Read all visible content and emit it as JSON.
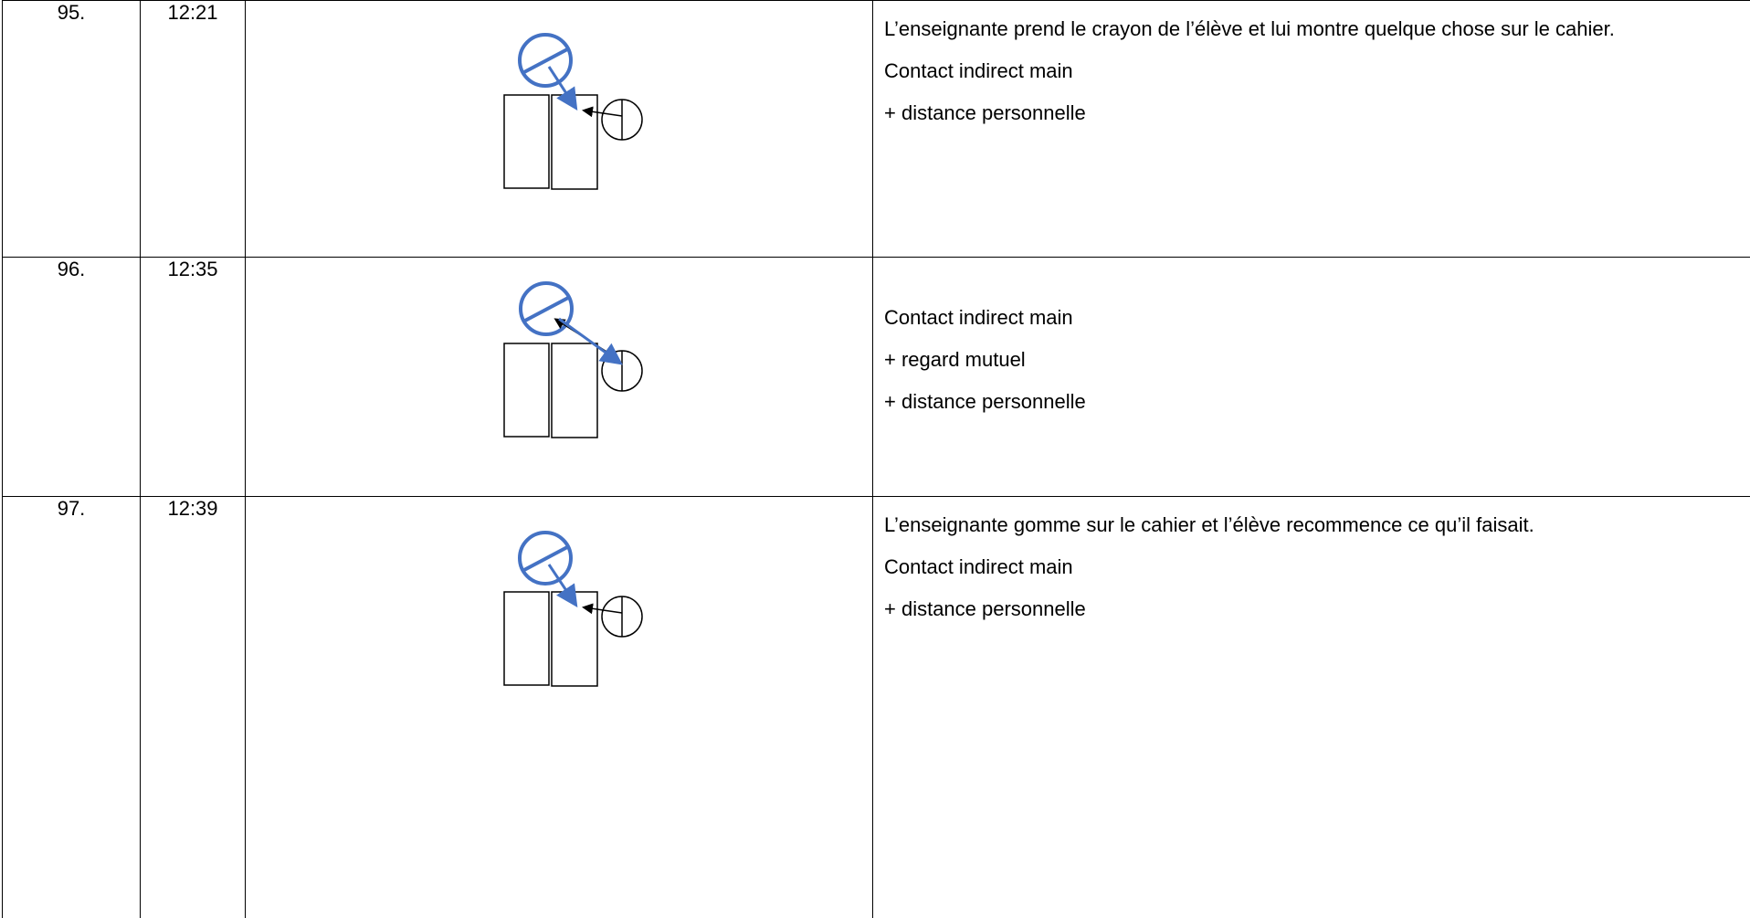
{
  "table": {
    "rows": [
      {
        "number": "95.",
        "time": "12:21",
        "description": [
          "L’enseignante prend le crayon de l’élève et lui montre quelque chose sur le cahier.",
          "Contact indirect main",
          "+ distance personnelle"
        ]
      },
      {
        "number": "96.",
        "time": "12:35",
        "description": [
          "Contact indirect main",
          "+ regard mutuel",
          "+ distance personnelle"
        ]
      },
      {
        "number": "97.",
        "time": "12:39",
        "description": [
          "L’enseignante gomme sur le cahier et l’élève recommence ce qu’il faisait.",
          "Contact indirect main",
          "+ distance personnelle"
        ]
      }
    ]
  }
}
